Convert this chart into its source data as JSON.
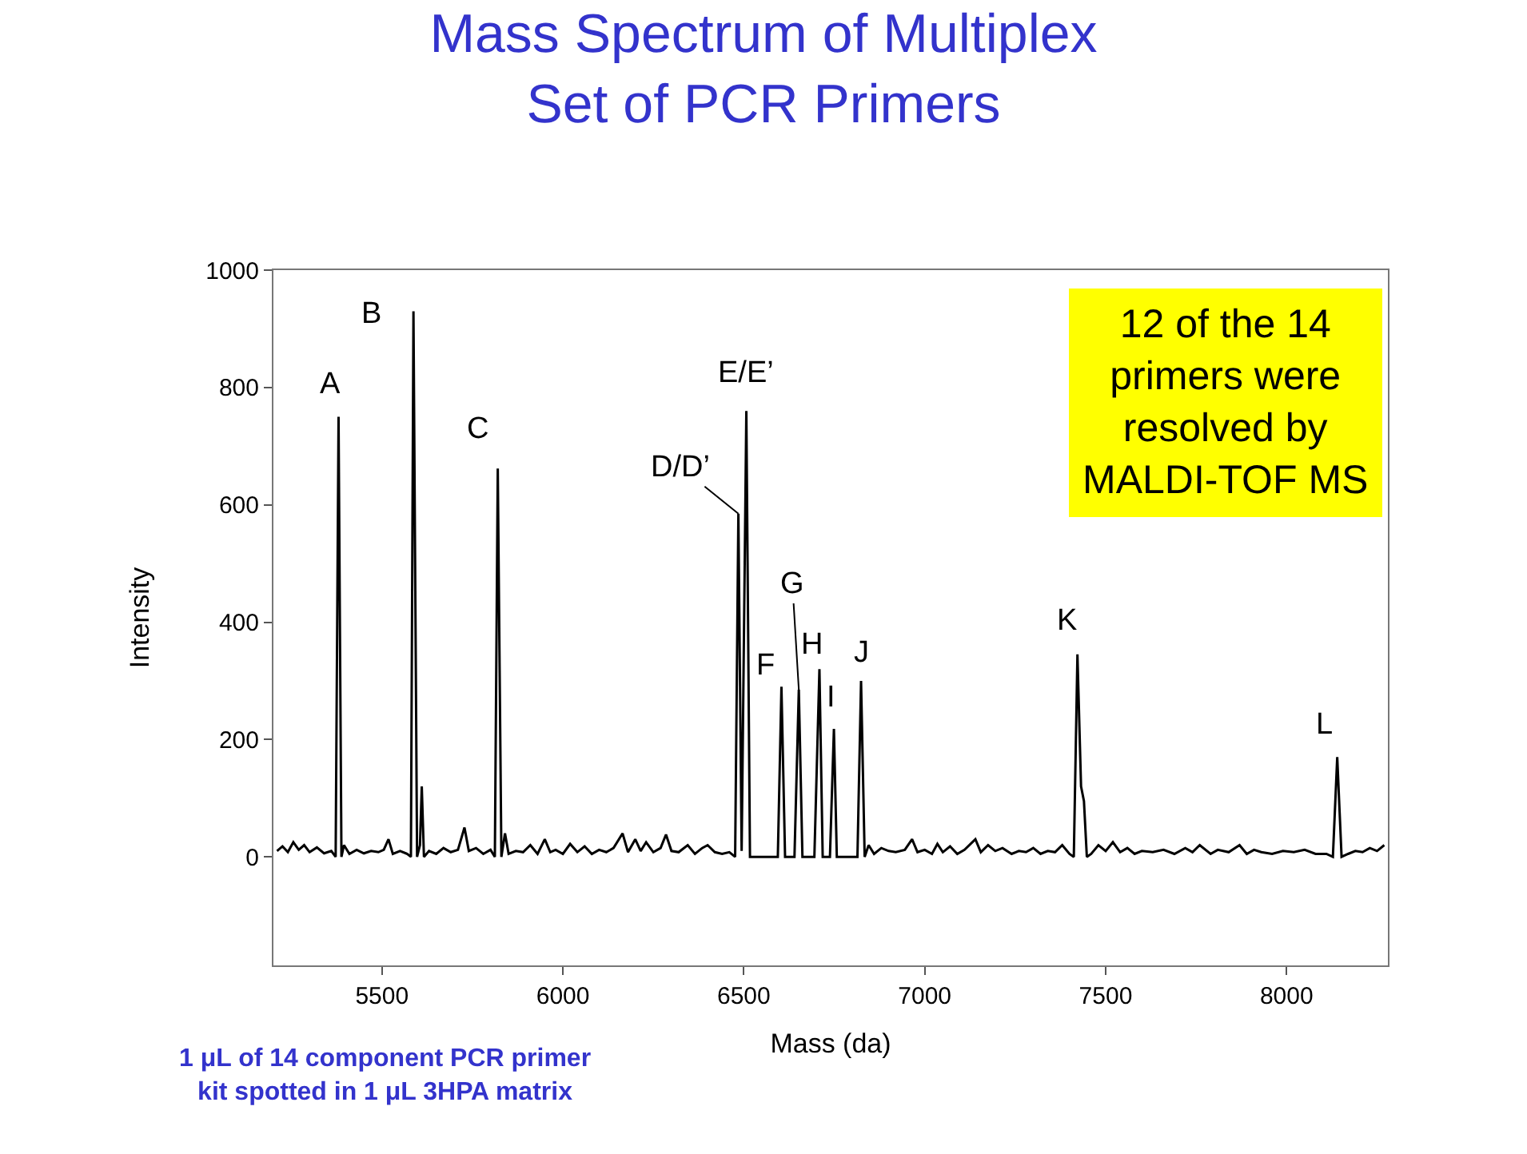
{
  "chart_data": {
    "type": "line",
    "title": "Mass Spectrum of Multiplex\nSet of PCR Primers",
    "xlabel": "Mass (da)",
    "ylabel": "Intensity",
    "xlim": [
      5200,
      8280
    ],
    "xticks": [
      5500,
      6000,
      6500,
      7000,
      7500,
      8000
    ],
    "ylim": [
      -185,
      1000
    ],
    "yticks": [
      0,
      200,
      400,
      600,
      800,
      1000
    ],
    "marker": "none",
    "line_style": "solid",
    "x": [
      5210,
      5225,
      5240,
      5255,
      5270,
      5285,
      5300,
      5320,
      5340,
      5360,
      5372,
      5380,
      5388,
      5395,
      5410,
      5430,
      5450,
      5470,
      5490,
      5505,
      5518,
      5530,
      5550,
      5570,
      5580,
      5587,
      5597,
      5605,
      5610,
      5616,
      5630,
      5650,
      5670,
      5690,
      5710,
      5728,
      5740,
      5760,
      5780,
      5800,
      5812,
      5820,
      5830,
      5840,
      5850,
      5870,
      5890,
      5910,
      5930,
      5950,
      5965,
      5980,
      6000,
      6020,
      6040,
      6060,
      6080,
      6100,
      6120,
      6140,
      6165,
      6180,
      6200,
      6215,
      6230,
      6250,
      6270,
      6285,
      6300,
      6320,
      6345,
      6365,
      6385,
      6400,
      6420,
      6440,
      6460,
      6476,
      6485,
      6494,
      6507,
      6517,
      6530,
      6580,
      6594,
      6604,
      6614,
      6640,
      6652,
      6662,
      6695,
      6709,
      6718,
      6738,
      6749,
      6757,
      6800,
      6814,
      6824,
      6834,
      6845,
      6860,
      6880,
      6900,
      6920,
      6945,
      6965,
      6980,
      7000,
      7020,
      7035,
      7050,
      7070,
      7090,
      7110,
      7140,
      7155,
      7175,
      7195,
      7215,
      7240,
      7260,
      7280,
      7300,
      7320,
      7340,
      7360,
      7380,
      7400,
      7412,
      7422,
      7432,
      7440,
      7448,
      7460,
      7480,
      7500,
      7520,
      7540,
      7560,
      7580,
      7600,
      7630,
      7660,
      7690,
      7720,
      7740,
      7760,
      7790,
      7810,
      7840,
      7870,
      7890,
      7910,
      7930,
      7960,
      7990,
      8020,
      8050,
      8080,
      8110,
      8128,
      8140,
      8152,
      8170,
      8190,
      8210,
      8230,
      8250,
      8270
    ],
    "series": [
      {
        "color": "#000000",
        "values": [
          10,
          18,
          8,
          25,
          12,
          20,
          8,
          16,
          6,
          10,
          0,
          750,
          0,
          20,
          5,
          12,
          6,
          10,
          8,
          12,
          30,
          5,
          10,
          5,
          0,
          930,
          0,
          20,
          120,
          0,
          10,
          5,
          15,
          8,
          12,
          50,
          10,
          15,
          5,
          12,
          0,
          662,
          0,
          40,
          5,
          10,
          8,
          20,
          5,
          30,
          8,
          12,
          5,
          22,
          8,
          18,
          5,
          12,
          8,
          15,
          40,
          8,
          30,
          10,
          25,
          8,
          15,
          38,
          10,
          8,
          20,
          5,
          15,
          20,
          8,
          5,
          8,
          0,
          585,
          10,
          760,
          0,
          0,
          0,
          0,
          290,
          0,
          0,
          285,
          0,
          0,
          320,
          0,
          0,
          218,
          0,
          0,
          0,
          300,
          0,
          20,
          5,
          15,
          10,
          8,
          12,
          30,
          8,
          12,
          5,
          22,
          8,
          18,
          5,
          12,
          30,
          8,
          20,
          10,
          15,
          5,
          10,
          8,
          15,
          5,
          10,
          8,
          20,
          5,
          0,
          345,
          120,
          95,
          0,
          5,
          20,
          10,
          25,
          8,
          15,
          5,
          10,
          8,
          12,
          5,
          15,
          8,
          20,
          5,
          12,
          8,
          20,
          5,
          12,
          8,
          5,
          10,
          8,
          12,
          5,
          5,
          0,
          170,
          0,
          5,
          10,
          8,
          15,
          10,
          20
        ]
      }
    ],
    "annotations": [
      {
        "text": "A",
        "x": 5380,
        "y": 750
      },
      {
        "text": "B",
        "x": 5587,
        "y": 930
      },
      {
        "text": "C",
        "x": 5820,
        "y": 662
      },
      {
        "text": "D/D’",
        "x": 6485,
        "y": 585
      },
      {
        "text": "E/E’",
        "x": 6507,
        "y": 760
      },
      {
        "text": "F",
        "x": 6604,
        "y": 290
      },
      {
        "text": "G",
        "x": 6652,
        "y": 285
      },
      {
        "text": "H",
        "x": 6709,
        "y": 320
      },
      {
        "text": "I",
        "x": 6749,
        "y": 218
      },
      {
        "text": "J",
        "x": 6824,
        "y": 300
      },
      {
        "text": "K",
        "x": 7422,
        "y": 345
      },
      {
        "text": "L",
        "x": 8140,
        "y": 170
      },
      "12 of the 14\nprimers were\nresolved by\nMALDI-TOF MS",
      "1 μL of 14 component PCR primer\nkit spotted in 1 μL 3HPA matrix"
    ]
  }
}
